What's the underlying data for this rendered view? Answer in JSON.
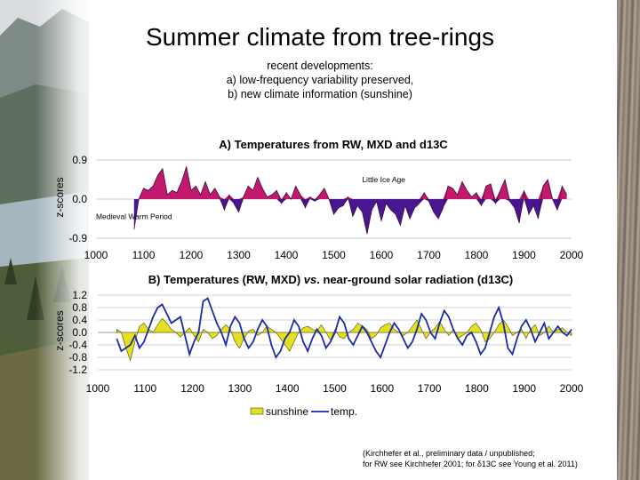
{
  "slide": {
    "title": "Summer climate from tree-rings",
    "subtitle_lines": [
      "recent developments:",
      "a) low-frequency variability preserved,",
      "b) new climate information (sunshine)"
    ],
    "citation_lines": [
      "(Kirchhefer et al., preliminary data / unpublished;",
      "for RW see Kirchhefer 2001; for δ13C see Young et al. 2011)"
    ]
  },
  "chart_data": [
    {
      "type": "area",
      "title": "A) Temperatures from RW, MXD and d13C",
      "ylabel": "z-scores",
      "xlim": [
        1000,
        2000
      ],
      "ylim": [
        -0.9,
        0.9
      ],
      "yticks": [
        "0.9",
        "0.0",
        "-0.9"
      ],
      "xticks": [
        "1000",
        "1100",
        "1200",
        "1300",
        "1400",
        "1500",
        "1600",
        "1700",
        "1800",
        "1900",
        "2000"
      ],
      "annotations": [
        {
          "text": "Little Ice Age",
          "x": 1605,
          "y": 0.45
        },
        {
          "text": "Medieval Warm Period",
          "x": 1080,
          "y": -0.4
        }
      ],
      "colors": {
        "positive": "#c2186e",
        "negative": "#4a1590"
      },
      "x": [
        1080,
        1090,
        1100,
        1110,
        1120,
        1130,
        1140,
        1150,
        1160,
        1170,
        1180,
        1190,
        1200,
        1210,
        1220,
        1230,
        1240,
        1250,
        1260,
        1270,
        1280,
        1290,
        1300,
        1310,
        1320,
        1330,
        1340,
        1350,
        1360,
        1370,
        1380,
        1390,
        1400,
        1410,
        1420,
        1430,
        1440,
        1450,
        1460,
        1470,
        1480,
        1490,
        1500,
        1510,
        1520,
        1530,
        1540,
        1550,
        1560,
        1570,
        1580,
        1590,
        1600,
        1610,
        1620,
        1630,
        1640,
        1650,
        1660,
        1670,
        1680,
        1690,
        1700,
        1710,
        1720,
        1730,
        1740,
        1750,
        1760,
        1770,
        1780,
        1790,
        1800,
        1810,
        1820,
        1830,
        1840,
        1850,
        1860,
        1870,
        1880,
        1890,
        1900,
        1910,
        1920,
        1930,
        1940,
        1950,
        1960,
        1970,
        1980,
        1990
      ],
      "values": [
        -0.7,
        0.0,
        0.25,
        0.2,
        0.3,
        0.55,
        0.7,
        0.1,
        0.2,
        0.15,
        0.4,
        0.75,
        0.2,
        0.3,
        0.1,
        0.4,
        0.1,
        0.25,
        0.05,
        -0.25,
        0.1,
        -0.1,
        -0.3,
        0.05,
        0.3,
        0.2,
        0.5,
        0.25,
        0.05,
        0.1,
        0.2,
        -0.1,
        0.15,
        0.0,
        0.3,
        0.1,
        -0.2,
        0.05,
        -0.05,
        0.1,
        0.25,
        0.0,
        -0.35,
        -0.2,
        -0.15,
        0.05,
        -0.4,
        -0.15,
        -0.3,
        -0.8,
        -0.25,
        -0.05,
        -0.5,
        -0.1,
        -0.25,
        -0.35,
        -0.6,
        -0.15,
        -0.45,
        -0.2,
        -0.1,
        0.15,
        -0.05,
        -0.3,
        -0.45,
        -0.2,
        0.3,
        0.25,
        0.1,
        0.4,
        0.2,
        0.05,
        0.15,
        -0.15,
        0.3,
        0.35,
        -0.1,
        0.2,
        0.45,
        -0.05,
        -0.2,
        -0.55,
        0.2,
        -0.35,
        -0.15,
        -0.45,
        0.3,
        0.45,
        0.0,
        -0.25,
        0.3,
        0.1
      ]
    },
    {
      "type": "line",
      "title": "B) Temperatures (RW, MXD) vs. near-ground solar radiation (d13C)",
      "title_parts": [
        "B) Temperatures (RW, MXD) ",
        "vs",
        ". near-ground solar radiation (d13C)"
      ],
      "ylabel": "z-scores",
      "xlim": [
        1000,
        2000
      ],
      "ylim": [
        -1.2,
        1.2
      ],
      "yticks": [
        "1.2",
        "0.8",
        "0.4",
        "0.0",
        "-0.4",
        "-0.8",
        "-1.2"
      ],
      "xticks": [
        "1000",
        "1100",
        "1200",
        "1300",
        "1400",
        "1500",
        "1600",
        "1700",
        "1800",
        "1900",
        "2000"
      ],
      "legend_position": "bottom",
      "series": [
        {
          "name": "sunshine",
          "kind": "area",
          "color": "#e2e020",
          "values": [
            0.1,
            0.0,
            -0.5,
            -0.9,
            -0.3,
            0.2,
            0.3,
            0.1,
            0.0,
            0.25,
            0.45,
            0.3,
            0.1,
            0.0,
            -0.15,
            0.0,
            0.15,
            -0.1,
            -0.3,
            0.1,
            0.0,
            -0.2,
            -0.1,
            0.1,
            0.25,
            0.1,
            -0.3,
            -0.5,
            -0.2,
            0.05,
            0.1,
            -0.1,
            0.0,
            0.2,
            0.1,
            0.0,
            -0.2,
            -0.4,
            -0.6,
            -0.3,
            0.0,
            0.15,
            0.2,
            0.1,
            0.05,
            0.25,
            0.0,
            -0.25,
            0.1,
            -0.15,
            -0.2,
            0.0,
            0.1,
            0.3,
            0.2,
            0.1,
            -0.2,
            -0.1,
            0.15,
            0.25,
            0.3,
            0.1,
            0.0,
            -0.1,
            0.0,
            0.2,
            0.4,
            0.1,
            -0.2,
            0.0,
            0.15,
            0.35,
            0.1,
            -0.1,
            0.1,
            -0.2,
            -0.1,
            0.0,
            0.2,
            0.3,
            0.1,
            -0.3,
            -0.2,
            0.0,
            0.25,
            0.4,
            0.2,
            -0.1,
            0.0,
            0.1,
            -0.2,
            0.1,
            0.25,
            -0.1,
            0.0,
            0.2,
            0.0,
            0.1,
            0.15,
            0.0,
            -0.1
          ]
        },
        {
          "name": "temp.",
          "kind": "line",
          "color": "#1a2aa8",
          "values": [
            -0.2,
            -0.6,
            -0.5,
            -0.4,
            -0.1,
            -0.5,
            -0.3,
            0.1,
            0.5,
            0.8,
            0.9,
            0.6,
            0.3,
            0.4,
            0.5,
            -0.1,
            -0.7,
            -0.3,
            0.0,
            1.0,
            1.1,
            0.7,
            0.3,
            0.0,
            -0.4,
            0.2,
            0.5,
            0.3,
            -0.2,
            -0.5,
            -0.3,
            0.1,
            0.4,
            0.2,
            -0.4,
            -0.8,
            -0.6,
            -0.2,
            0.0,
            0.4,
            0.2,
            -0.3,
            -0.6,
            -0.2,
            0.1,
            -0.1,
            -0.5,
            -0.3,
            0.0,
            0.5,
            0.3,
            -0.2,
            -0.4,
            -0.1,
            0.2,
            0.0,
            -0.3,
            -0.6,
            -0.8,
            -0.4,
            0.0,
            0.3,
            0.1,
            -0.2,
            -0.5,
            -0.3,
            0.1,
            0.6,
            0.4,
            0.0,
            -0.2,
            0.3,
            0.7,
            0.5,
            0.1,
            -0.2,
            -0.4,
            -0.1,
            0.0,
            -0.3,
            -0.7,
            -0.5,
            0.0,
            0.5,
            0.8,
            0.3,
            -0.5,
            -0.7,
            -0.2,
            0.2,
            0.4,
            0.1,
            -0.3,
            0.0,
            0.3,
            -0.2,
            0.0,
            0.2,
            0.0,
            -0.1,
            0.1
          ]
        }
      ]
    }
  ]
}
